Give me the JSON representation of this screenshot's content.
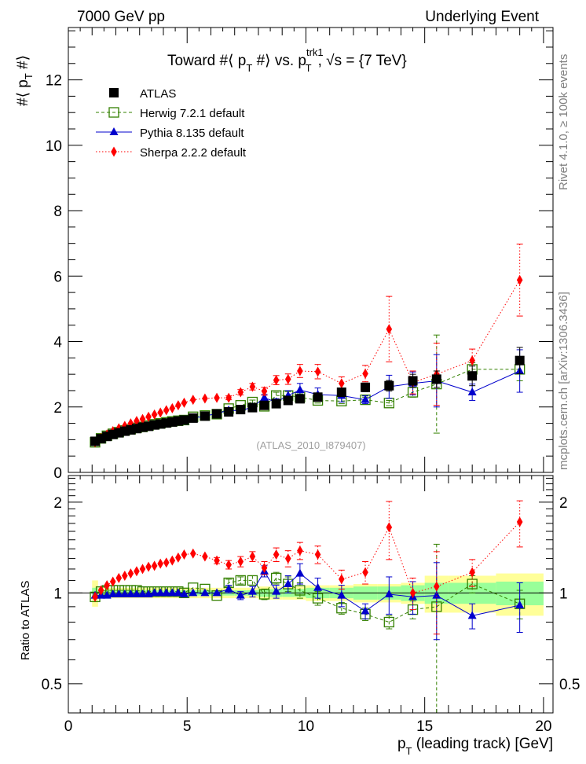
{
  "header": {
    "left": "7000 GeV pp",
    "right": "Underlying Event"
  },
  "side_labels": {
    "rivet": "Rivet 4.1.0, ≥ 100k events",
    "mcplots": "mcplots.cern.ch [arXiv:1306.3436]"
  },
  "watermark": "(ATLAS_2010_I879407)",
  "chart_data": [
    {
      "type": "scatter",
      "panel": "main",
      "title": "Toward #⟨ p_T #⟩ vs. p_T^trk1, √s = {7 TeV}",
      "title_parts": {
        "pre": "Toward #⟨ p",
        "sub1": "T",
        "mid": " #⟩ vs. p",
        "sup2": "trk1",
        "sub2": "T",
        "post": ", √s = {7 TeV}"
      },
      "ylabel": "#⟨ p_T #⟩",
      "ylabel_parts": {
        "pre": "#⟨ p",
        "sub": "T",
        "post": " #⟩"
      },
      "xlabel": "",
      "xlim": [
        0,
        20.4
      ],
      "ylim": [
        0,
        13.6
      ],
      "yticks": [
        0,
        2,
        4,
        6,
        8,
        10,
        12
      ],
      "ytick_labels": [
        "0",
        "2",
        "4",
        "6",
        "8",
        "10",
        "12"
      ],
      "legend_position": "top-left",
      "x": [
        1.125,
        1.375,
        1.625,
        1.875,
        2.125,
        2.375,
        2.625,
        2.875,
        3.125,
        3.375,
        3.625,
        3.875,
        4.125,
        4.375,
        4.625,
        4.875,
        5.25,
        5.75,
        6.25,
        6.75,
        7.25,
        7.75,
        8.25,
        8.75,
        9.25,
        9.75,
        10.5,
        11.5,
        12.5,
        13.5,
        14.5,
        15.5,
        17,
        19
      ],
      "series": [
        {
          "name": "ATLAS",
          "style": "data",
          "color": "#000000",
          "marker": "filled-square",
          "values": [
            0.95,
            1.03,
            1.1,
            1.16,
            1.21,
            1.26,
            1.3,
            1.34,
            1.38,
            1.41,
            1.45,
            1.48,
            1.51,
            1.54,
            1.57,
            1.6,
            1.66,
            1.72,
            1.79,
            1.85,
            1.92,
            1.98,
            2.05,
            2.1,
            2.2,
            2.25,
            2.3,
            2.45,
            2.6,
            2.65,
            2.8,
            2.85,
            2.95,
            3.42
          ],
          "errors": [
            0.02,
            0.02,
            0.02,
            0.02,
            0.02,
            0.02,
            0.02,
            0.02,
            0.02,
            0.02,
            0.02,
            0.02,
            0.02,
            0.02,
            0.02,
            0.02,
            0.03,
            0.03,
            0.03,
            0.04,
            0.04,
            0.05,
            0.05,
            0.06,
            0.07,
            0.08,
            0.09,
            0.11,
            0.13,
            0.16,
            0.2,
            0.25,
            0.3,
            0.4
          ]
        },
        {
          "name": "Herwig 7.2.1 default",
          "style": "dashed",
          "color": "#338000",
          "marker": "open-square",
          "values": [
            0.92,
            1.04,
            1.12,
            1.18,
            1.23,
            1.28,
            1.32,
            1.36,
            1.39,
            1.43,
            1.47,
            1.5,
            1.53,
            1.56,
            1.58,
            1.6,
            1.7,
            1.74,
            1.78,
            1.95,
            2.05,
            2.15,
            2.02,
            2.35,
            2.35,
            2.3,
            2.2,
            2.18,
            2.22,
            2.12,
            2.45,
            2.7,
            3.15,
            3.15
          ],
          "errors": [
            0.02,
            0.02,
            0.02,
            0.02,
            0.02,
            0.02,
            0.02,
            0.02,
            0.02,
            0.02,
            0.02,
            0.02,
            0.02,
            0.02,
            0.02,
            0.02,
            0.03,
            0.03,
            0.03,
            0.04,
            0.05,
            0.06,
            0.06,
            0.1,
            0.12,
            0.1,
            0.08,
            0.08,
            0.08,
            0.08,
            0.15,
            1.5,
            0.2,
            0.35
          ]
        },
        {
          "name": "Pythia 8.135 default",
          "style": "solid",
          "color": "#0000cc",
          "marker": "filled-triangle",
          "values": [
            0.93,
            1.01,
            1.08,
            1.15,
            1.2,
            1.25,
            1.29,
            1.33,
            1.37,
            1.4,
            1.44,
            1.47,
            1.5,
            1.53,
            1.56,
            1.58,
            1.66,
            1.72,
            1.8,
            1.9,
            1.88,
            2.0,
            2.28,
            2.15,
            2.35,
            2.52,
            2.38,
            2.35,
            2.22,
            2.62,
            2.72,
            2.8,
            2.45,
            3.1
          ],
          "errors": [
            0.02,
            0.02,
            0.02,
            0.02,
            0.02,
            0.02,
            0.02,
            0.02,
            0.02,
            0.02,
            0.02,
            0.02,
            0.02,
            0.02,
            0.02,
            0.02,
            0.03,
            0.03,
            0.03,
            0.04,
            0.05,
            0.06,
            0.1,
            0.1,
            0.15,
            0.2,
            0.2,
            0.2,
            0.12,
            0.35,
            0.35,
            0.8,
            0.25,
            0.65
          ]
        },
        {
          "name": "Sherpa 2.2.2 default",
          "style": "dotted",
          "color": "#ff0000",
          "marker": "filled-diamond",
          "values": [
            0.92,
            1.05,
            1.16,
            1.26,
            1.35,
            1.42,
            1.5,
            1.57,
            1.63,
            1.7,
            1.77,
            1.83,
            1.9,
            1.96,
            2.05,
            2.13,
            2.22,
            2.26,
            2.28,
            2.28,
            2.45,
            2.62,
            2.48,
            2.82,
            2.85,
            3.1,
            3.08,
            2.72,
            3.02,
            4.38,
            2.75,
            3.0,
            3.42,
            5.88
          ],
          "errors": [
            0.02,
            0.02,
            0.02,
            0.02,
            0.02,
            0.02,
            0.02,
            0.02,
            0.02,
            0.02,
            0.02,
            0.02,
            0.02,
            0.02,
            0.02,
            0.03,
            0.03,
            0.04,
            0.05,
            0.06,
            0.08,
            0.1,
            0.12,
            0.14,
            0.16,
            0.2,
            0.22,
            0.2,
            0.25,
            1.0,
            0.35,
            0.95,
            0.35,
            1.1
          ]
        }
      ]
    },
    {
      "type": "scatter",
      "panel": "ratio",
      "ylabel": "Ratio to ATLAS",
      "xlabel": "p_T (leading track) [GeV]",
      "xlabel_parts": {
        "pre": "p",
        "sub": "T",
        "post": " (leading track) [GeV]"
      },
      "xlim": [
        0,
        20.4
      ],
      "ylim": [
        0.4,
        2.45
      ],
      "yscale": "log",
      "yticks": [
        0.5,
        1,
        2
      ],
      "ytick_labels": [
        "0.5",
        "1",
        "2"
      ],
      "xticks": [
        0,
        5,
        10,
        15,
        20
      ],
      "xtick_labels": [
        "0",
        "5",
        "10",
        "15",
        "20"
      ],
      "x": [
        1.125,
        1.375,
        1.625,
        1.875,
        2.125,
        2.375,
        2.625,
        2.875,
        3.125,
        3.375,
        3.625,
        3.875,
        4.125,
        4.375,
        4.625,
        4.875,
        5.25,
        5.75,
        6.25,
        6.75,
        7.25,
        7.75,
        8.25,
        8.75,
        9.25,
        9.75,
        10.5,
        11.5,
        12.5,
        13.5,
        14.5,
        15.5,
        17,
        19
      ],
      "x_edges": [
        1.0,
        1.25,
        1.5,
        1.75,
        2.0,
        2.25,
        2.5,
        2.75,
        3.0,
        3.25,
        3.5,
        3.75,
        4.0,
        4.25,
        4.5,
        4.75,
        5.0,
        5.5,
        6.0,
        6.5,
        7.0,
        7.5,
        8.0,
        8.5,
        9.0,
        9.5,
        10.0,
        11.0,
        12.0,
        13.0,
        14.0,
        15.0,
        16.0,
        18.0,
        20.0
      ],
      "band_stat": [
        0.04,
        0.02,
        0.02,
        0.02,
        0.02,
        0.02,
        0.02,
        0.02,
        0.02,
        0.02,
        0.02,
        0.02,
        0.02,
        0.02,
        0.02,
        0.02,
        0.02,
        0.02,
        0.02,
        0.02,
        0.02,
        0.02,
        0.03,
        0.03,
        0.03,
        0.03,
        0.04,
        0.04,
        0.05,
        0.05,
        0.06,
        0.08,
        0.08,
        0.09
      ],
      "band_total": [
        0.1,
        0.04,
        0.04,
        0.04,
        0.04,
        0.04,
        0.04,
        0.04,
        0.04,
        0.04,
        0.04,
        0.04,
        0.04,
        0.04,
        0.04,
        0.04,
        0.04,
        0.04,
        0.04,
        0.04,
        0.04,
        0.04,
        0.05,
        0.05,
        0.05,
        0.05,
        0.06,
        0.06,
        0.07,
        0.07,
        0.08,
        0.14,
        0.14,
        0.16
      ],
      "series": [
        {
          "name": "Herwig 7.2.1 default",
          "color": "#338000",
          "values": [
            0.97,
            1.01,
            1.02,
            1.02,
            1.02,
            1.02,
            1.02,
            1.02,
            1.01,
            1.01,
            1.01,
            1.01,
            1.01,
            1.01,
            1.01,
            1.0,
            1.04,
            1.03,
            0.98,
            1.08,
            1.1,
            1.1,
            0.99,
            1.12,
            1.07,
            1.02,
            0.96,
            0.89,
            0.85,
            0.8,
            0.88,
            0.9,
            1.07,
            0.92
          ],
          "errors": [
            0.02,
            0.02,
            0.02,
            0.02,
            0.02,
            0.02,
            0.02,
            0.02,
            0.02,
            0.02,
            0.02,
            0.02,
            0.02,
            0.02,
            0.02,
            0.02,
            0.02,
            0.02,
            0.02,
            0.03,
            0.03,
            0.04,
            0.04,
            0.05,
            0.06,
            0.06,
            0.05,
            0.04,
            0.04,
            0.04,
            0.06,
            0.55,
            0.07,
            0.1
          ]
        },
        {
          "name": "Pythia 8.135 default",
          "color": "#0000cc",
          "values": [
            0.98,
            0.98,
            0.98,
            0.99,
            0.99,
            0.99,
            0.99,
            0.99,
            0.99,
            0.99,
            1.0,
            1.0,
            1.0,
            1.0,
            1.0,
            0.99,
            1.0,
            1.0,
            1.0,
            1.03,
            0.98,
            1.01,
            1.18,
            1.01,
            1.07,
            1.16,
            1.04,
            0.98,
            0.87,
            0.99,
            0.97,
            0.98,
            0.84,
            0.91
          ],
          "errors": [
            0.02,
            0.02,
            0.02,
            0.02,
            0.02,
            0.02,
            0.02,
            0.02,
            0.02,
            0.02,
            0.02,
            0.02,
            0.02,
            0.02,
            0.02,
            0.02,
            0.02,
            0.02,
            0.02,
            0.03,
            0.03,
            0.04,
            0.05,
            0.05,
            0.07,
            0.09,
            0.08,
            0.08,
            0.05,
            0.14,
            0.12,
            0.28,
            0.08,
            0.17
          ]
        },
        {
          "name": "Sherpa 2.2.2 default",
          "color": "#ff0000",
          "values": [
            0.97,
            1.02,
            1.06,
            1.09,
            1.12,
            1.14,
            1.16,
            1.18,
            1.2,
            1.22,
            1.23,
            1.25,
            1.26,
            1.28,
            1.31,
            1.34,
            1.35,
            1.32,
            1.28,
            1.24,
            1.27,
            1.32,
            1.21,
            1.34,
            1.3,
            1.38,
            1.34,
            1.11,
            1.17,
            1.65,
            1.0,
            1.05,
            1.17,
            1.72
          ],
          "errors": [
            0.02,
            0.02,
            0.02,
            0.02,
            0.02,
            0.02,
            0.02,
            0.02,
            0.02,
            0.02,
            0.02,
            0.02,
            0.02,
            0.02,
            0.02,
            0.02,
            0.02,
            0.02,
            0.03,
            0.04,
            0.05,
            0.05,
            0.06,
            0.07,
            0.08,
            0.09,
            0.09,
            0.08,
            0.1,
            0.36,
            0.12,
            0.32,
            0.12,
            0.3
          ]
        }
      ]
    }
  ]
}
